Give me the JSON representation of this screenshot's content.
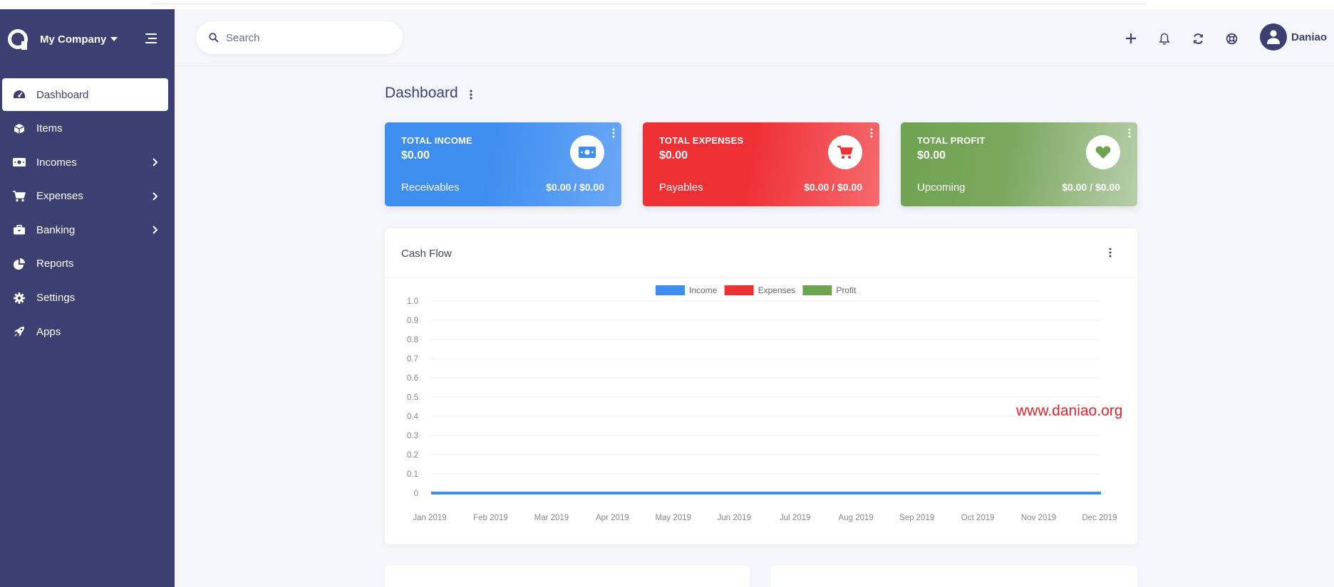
{
  "brand": {
    "name": "My Company"
  },
  "sidebar": {
    "items": [
      {
        "label": "Dashboard",
        "icon": "dashboard-icon",
        "active": true,
        "has_submenu": false
      },
      {
        "label": "Items",
        "icon": "cube-icon",
        "active": false,
        "has_submenu": false
      },
      {
        "label": "Incomes",
        "icon": "money-bill-icon",
        "active": false,
        "has_submenu": true
      },
      {
        "label": "Expenses",
        "icon": "shopping-cart-icon",
        "active": false,
        "has_submenu": true
      },
      {
        "label": "Banking",
        "icon": "briefcase-icon",
        "active": false,
        "has_submenu": true
      },
      {
        "label": "Reports",
        "icon": "chart-pie-icon",
        "active": false,
        "has_submenu": false
      },
      {
        "label": "Settings",
        "icon": "gear-icon",
        "active": false,
        "has_submenu": false
      },
      {
        "label": "Apps",
        "icon": "rocket-icon",
        "active": false,
        "has_submenu": false
      }
    ]
  },
  "header": {
    "search": {
      "placeholder": "Search",
      "value": ""
    },
    "icons": [
      "plus-icon",
      "bell-icon",
      "refresh-icon",
      "life-ring-icon"
    ],
    "user_name": "Daniao"
  },
  "page": {
    "title": "Dashboard"
  },
  "cards": [
    {
      "title": "TOTAL INCOME",
      "amount": "$0.00",
      "sub_label": "Receivables",
      "sub_value": "$0.00 / $0.00",
      "icon": "money-bill-icon",
      "color": "#3e8ef0"
    },
    {
      "title": "TOTAL EXPENSES",
      "amount": "$0.00",
      "sub_label": "Payables",
      "sub_value": "$0.00 / $0.00",
      "icon": "shopping-cart-icon",
      "color": "#ef3035"
    },
    {
      "title": "TOTAL PROFIT",
      "amount": "$0.00",
      "sub_label": "Upcoming",
      "sub_value": "$0.00 / $0.00",
      "icon": "heart-icon",
      "color": "#6ea350"
    }
  ],
  "cash_flow": {
    "title": "Cash Flow"
  },
  "watermark": "www.daniao.org",
  "colors": {
    "sidebar": "#3c3f72",
    "income": "#3e8ef0",
    "expenses": "#ef3035",
    "profit": "#6ea350"
  },
  "chart_data": {
    "type": "line",
    "title": "",
    "xlabel": "",
    "ylabel": "",
    "categories": [
      "Jan 2019",
      "Feb 2019",
      "Mar 2019",
      "Apr 2019",
      "May 2019",
      "Jun 2019",
      "Jul 2019",
      "Aug 2019",
      "Sep 2019",
      "Oct 2019",
      "Nov 2019",
      "Dec 2019"
    ],
    "y_ticks": [
      "1.0",
      "0.9",
      "0.8",
      "0.7",
      "0.6",
      "0.5",
      "0.4",
      "0.3",
      "0.2",
      "0.1",
      "0"
    ],
    "ylim": [
      0,
      1
    ],
    "grid": true,
    "legend_position": "top-center",
    "series": [
      {
        "name": "Income",
        "color": "#3e8ef0",
        "values": [
          0,
          0,
          0,
          0,
          0,
          0,
          0,
          0,
          0,
          0,
          0,
          0
        ]
      },
      {
        "name": "Expenses",
        "color": "#ef3035",
        "values": [
          0,
          0,
          0,
          0,
          0,
          0,
          0,
          0,
          0,
          0,
          0,
          0
        ]
      },
      {
        "name": "Profit",
        "color": "#6ea350",
        "values": [
          0,
          0,
          0,
          0,
          0,
          0,
          0,
          0,
          0,
          0,
          0,
          0
        ]
      }
    ]
  }
}
